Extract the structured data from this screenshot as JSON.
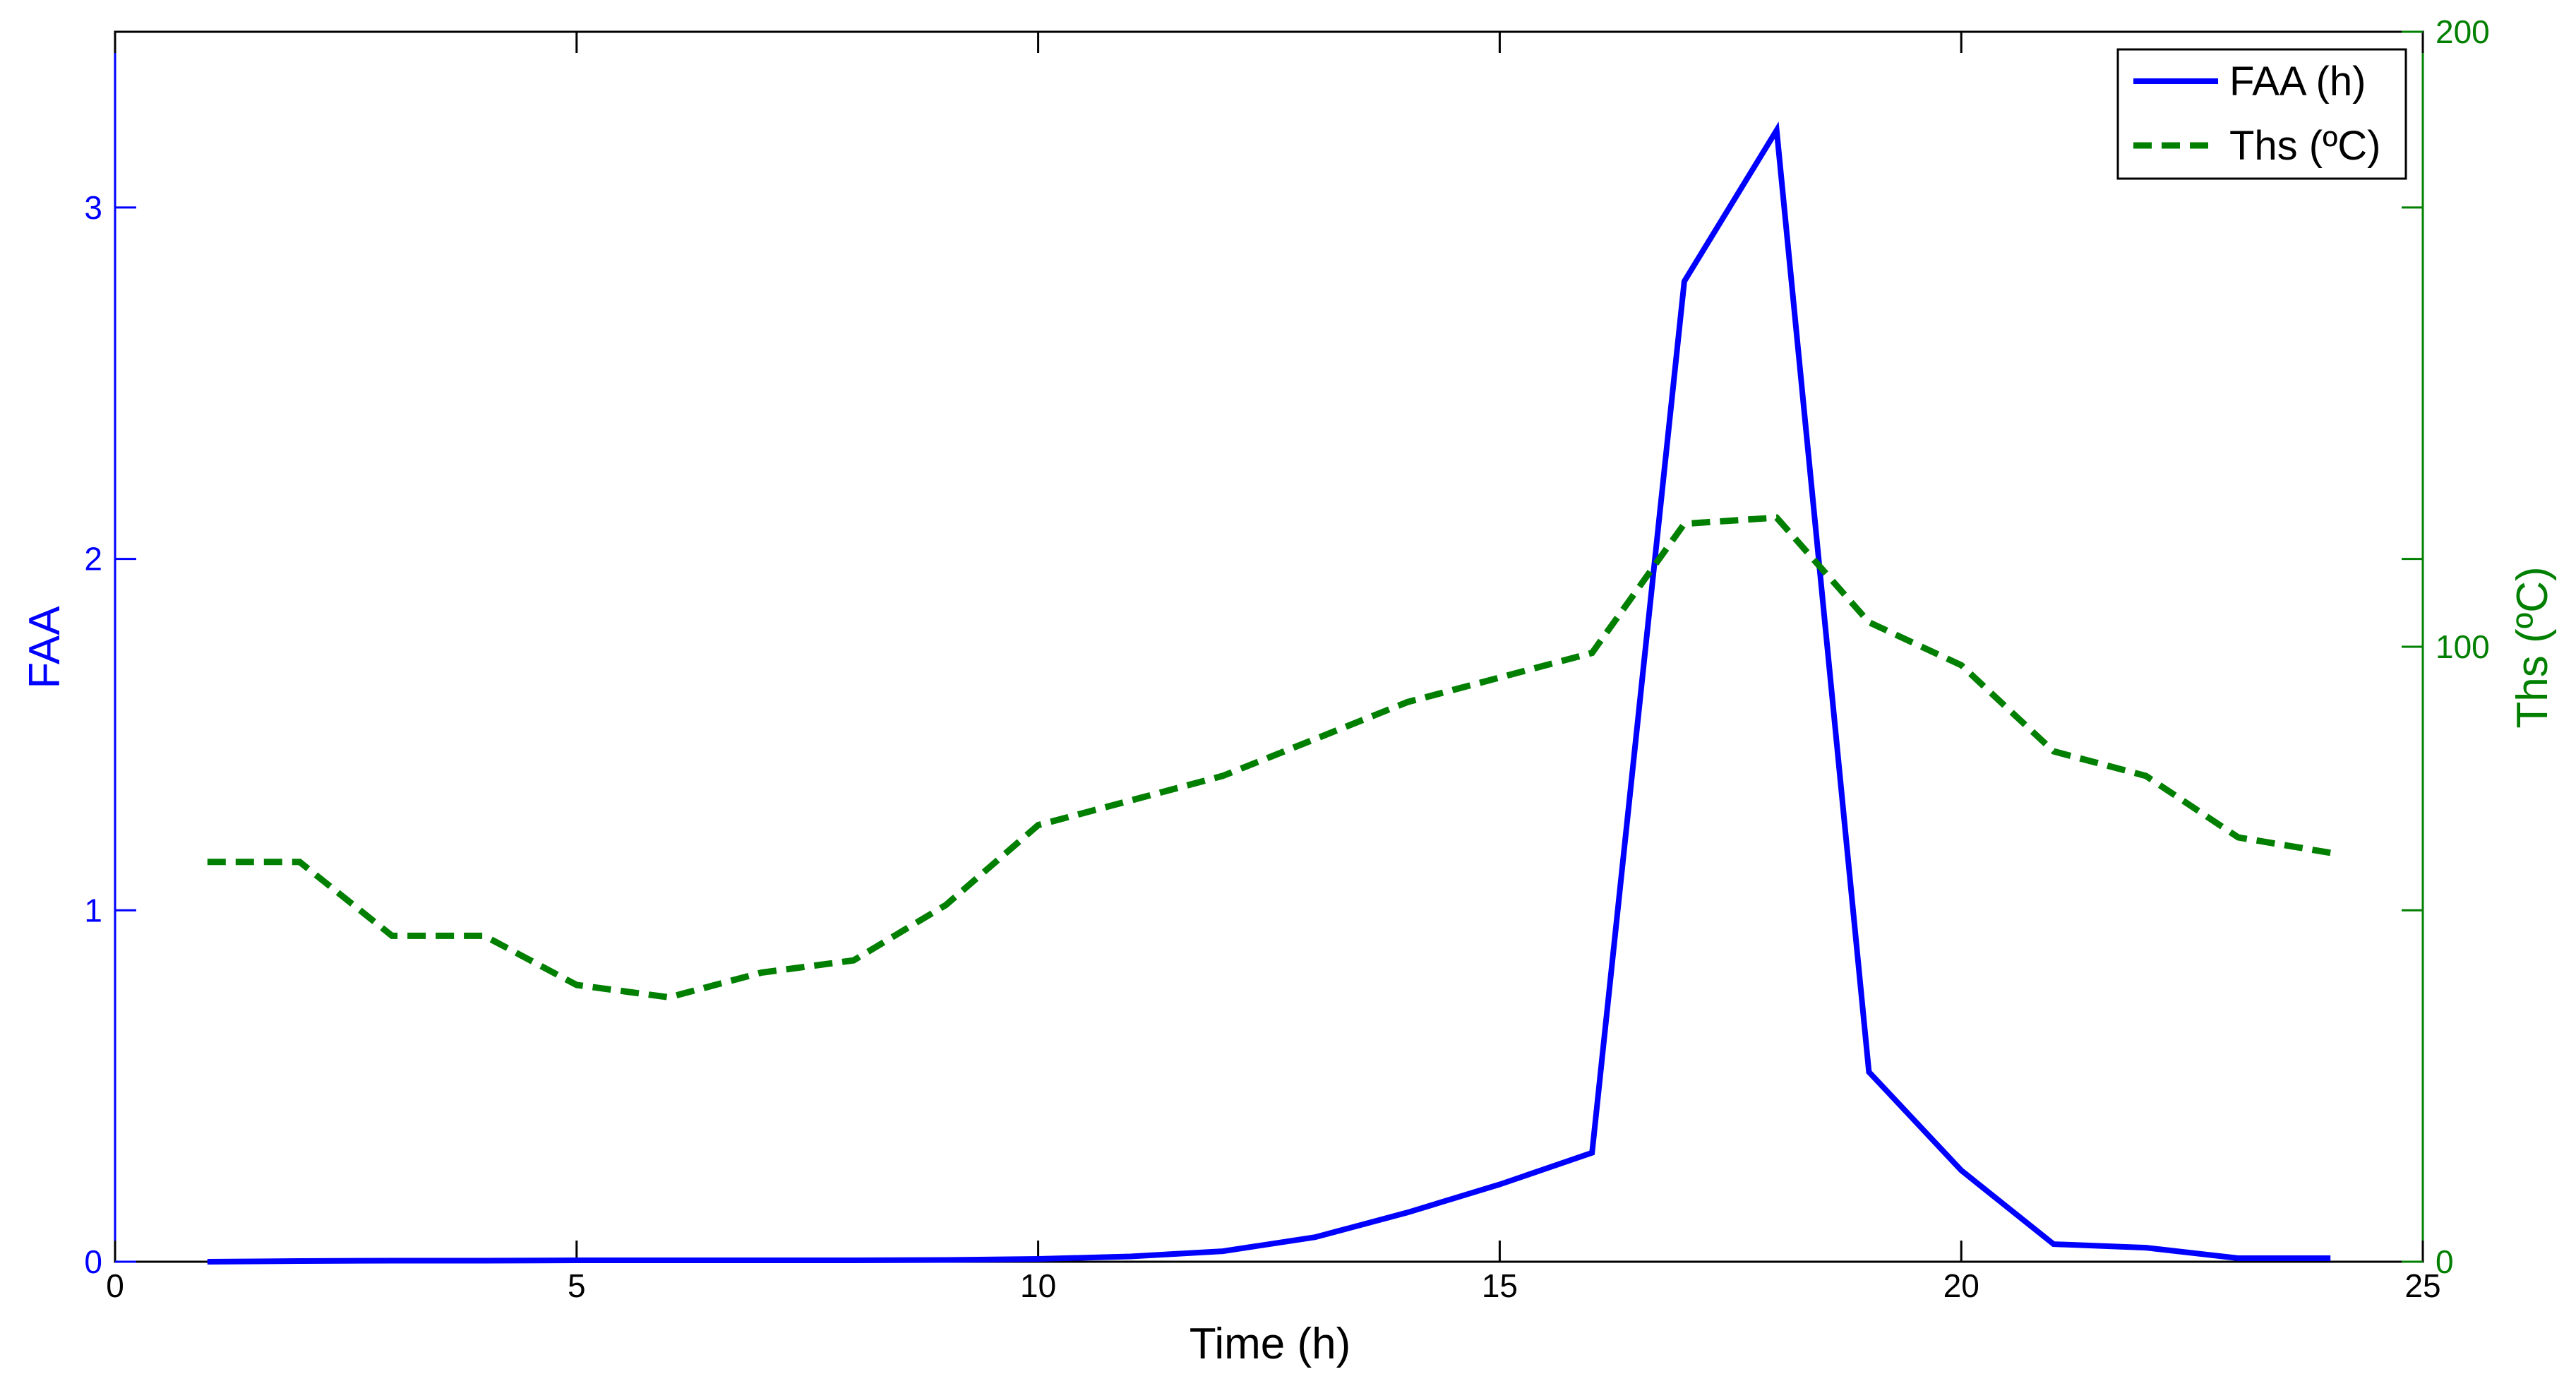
{
  "chart_data": {
    "type": "line",
    "xlabel": "Time (h)",
    "ylabel": "FAA",
    "y2label": "Ths (ºC)",
    "xlim": [
      0,
      25
    ],
    "ylim": [
      0,
      3.5
    ],
    "y2lim": [
      0,
      200
    ],
    "xticks": [
      0,
      5,
      10,
      15,
      20,
      25
    ],
    "yticks": [
      0,
      1,
      2,
      3
    ],
    "y2ticks": [
      0,
      100,
      200
    ],
    "grid": false,
    "legend_position": "top-right",
    "colors": {
      "faa": "#0000ff",
      "ths": "#007f00",
      "axes": "#000000"
    },
    "series": [
      {
        "name": "FAA (h)",
        "axis": "left",
        "style": "solid",
        "x": [
          1,
          2,
          3,
          4,
          5,
          6,
          7,
          8,
          9,
          10,
          11,
          12,
          13,
          14,
          15,
          16,
          17,
          18,
          19,
          20,
          21,
          22,
          23,
          24
        ],
        "values": [
          0.0,
          0.002,
          0.003,
          0.003,
          0.004,
          0.004,
          0.004,
          0.004,
          0.005,
          0.008,
          0.015,
          0.03,
          0.07,
          0.14,
          0.22,
          0.31,
          2.79,
          3.22,
          0.54,
          0.26,
          0.05,
          0.04,
          0.01,
          0.01
        ]
      },
      {
        "name": "Ths (ºC)",
        "axis": "right",
        "style": "dashed",
        "x": [
          1,
          2,
          3,
          4,
          5,
          6,
          7,
          8,
          9,
          10,
          11,
          12,
          13,
          14,
          15,
          16,
          17,
          18,
          19,
          20,
          21,
          22,
          23,
          24
        ],
        "values": [
          65,
          65,
          53,
          53,
          45,
          43,
          47,
          49,
          58,
          71,
          75,
          79,
          85,
          91,
          95,
          99,
          120,
          121,
          104,
          97,
          83,
          79,
          69,
          66.5
        ]
      }
    ]
  }
}
